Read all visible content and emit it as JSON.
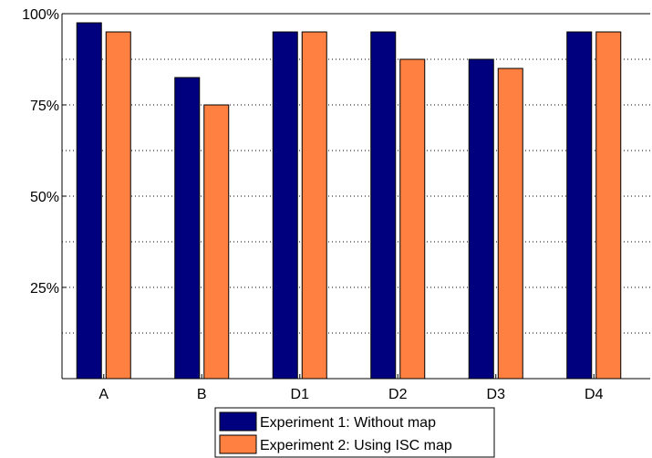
{
  "chart_data": {
    "type": "bar",
    "title": "",
    "xlabel": "",
    "ylabel": "",
    "categories": [
      "A",
      "B",
      "D1",
      "D2",
      "D3",
      "D4"
    ],
    "series": [
      {
        "name": "Experiment 1: Without map",
        "color": "#00007f",
        "values": [
          97.5,
          82.5,
          95,
          95,
          87.5,
          95
        ]
      },
      {
        "name": "Experiment 2: Using ISC map",
        "color": "#ff8040",
        "values": [
          95,
          75,
          95,
          87.5,
          85,
          95
        ]
      }
    ],
    "ylim": [
      0,
      100
    ],
    "yticks": [
      {
        "value": 25,
        "label": "25%"
      },
      {
        "value": 50,
        "label": "50%"
      },
      {
        "value": 75,
        "label": "75%"
      },
      {
        "value": 100,
        "label": "100%"
      }
    ],
    "grid": true,
    "legend_position": "bottom"
  }
}
